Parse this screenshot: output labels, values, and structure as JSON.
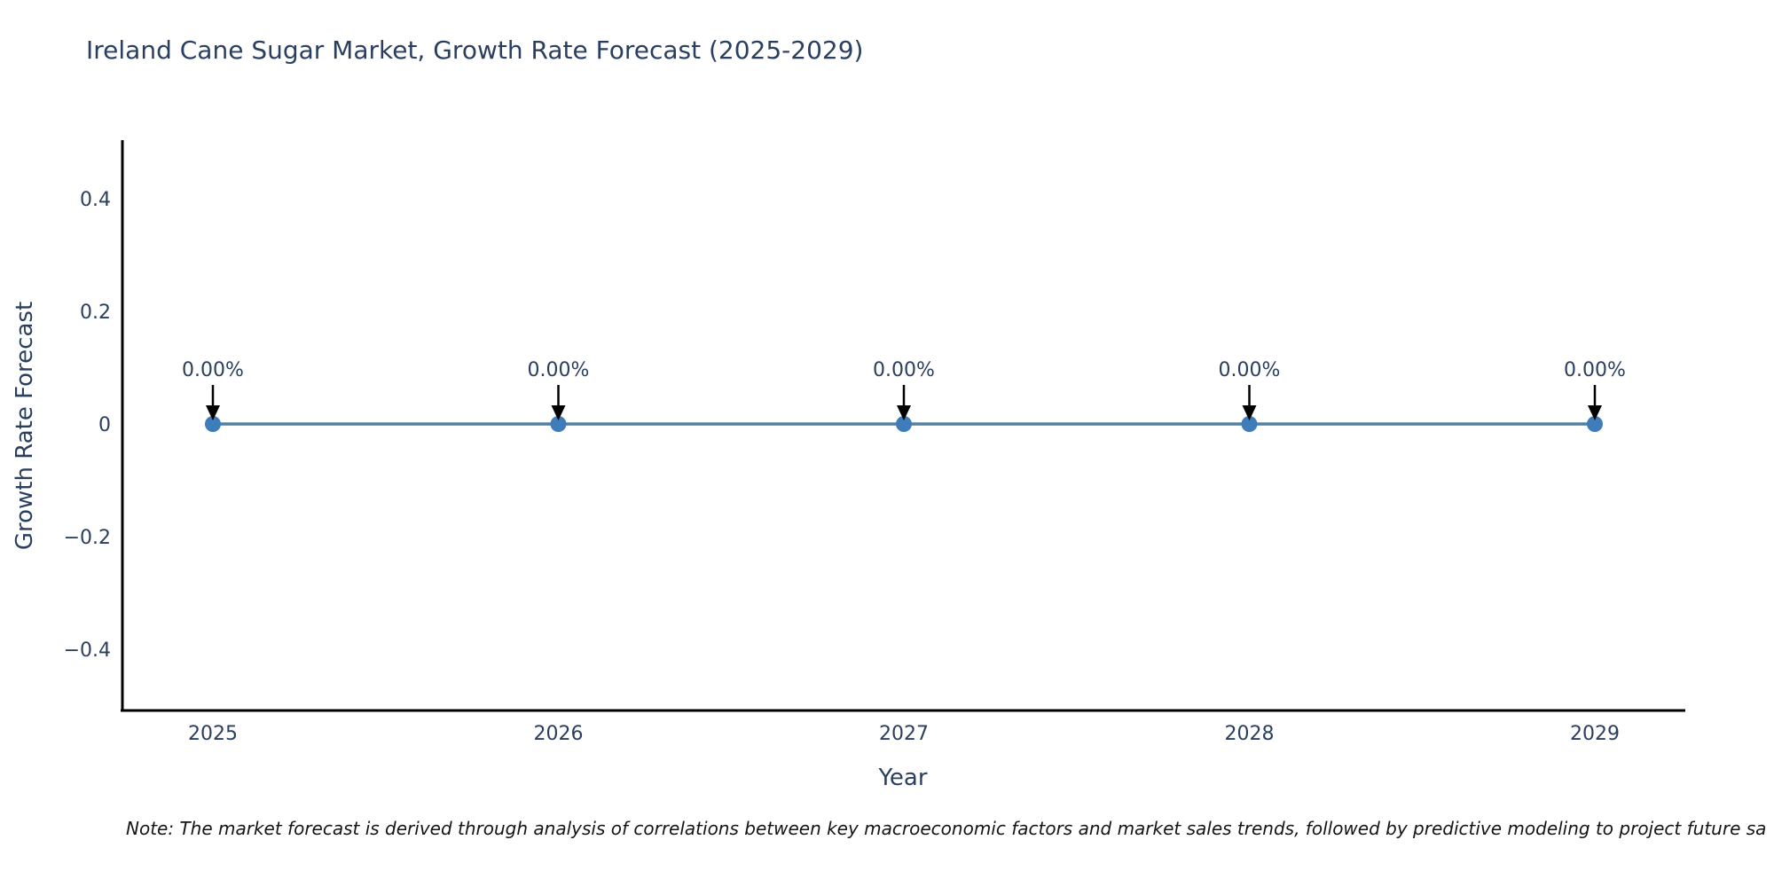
{
  "chart_data": {
    "type": "line",
    "title": "Ireland Cane Sugar Market, Growth Rate Forecast (2025-2029)",
    "xlabel": "Year",
    "ylabel": "Growth Rate Forecast",
    "x": [
      2025,
      2026,
      2027,
      2028,
      2029
    ],
    "series": [
      {
        "name": "Growth Rate Forecast",
        "values": [
          0,
          0,
          0,
          0,
          0
        ]
      }
    ],
    "point_labels": [
      "0.00%",
      "0.00%",
      "0.00%",
      "0.00%",
      "0.00%"
    ],
    "yticks": [
      0.4,
      0.2,
      0,
      -0.2,
      -0.4
    ],
    "ytick_labels": [
      "0.4",
      "0.2",
      "0",
      "−0.2",
      "−0.4"
    ],
    "ylim": [
      -0.5,
      0.5
    ],
    "grid": false,
    "legend": "none",
    "annotation_arrows": true,
    "footnote": "Note: The market forecast is derived through analysis of correlations between key macroeconomic factors and market sales trends, followed by predictive modeling to project future sa",
    "colors": {
      "line": "#54809f",
      "marker": "#3f7cba",
      "axis": "#000000",
      "tick_text": "#2a3f5f",
      "title_text": "#2a3f5f",
      "annotation_text": "#2a3f5f",
      "arrow": "#000000",
      "note_text": "#151515"
    }
  }
}
